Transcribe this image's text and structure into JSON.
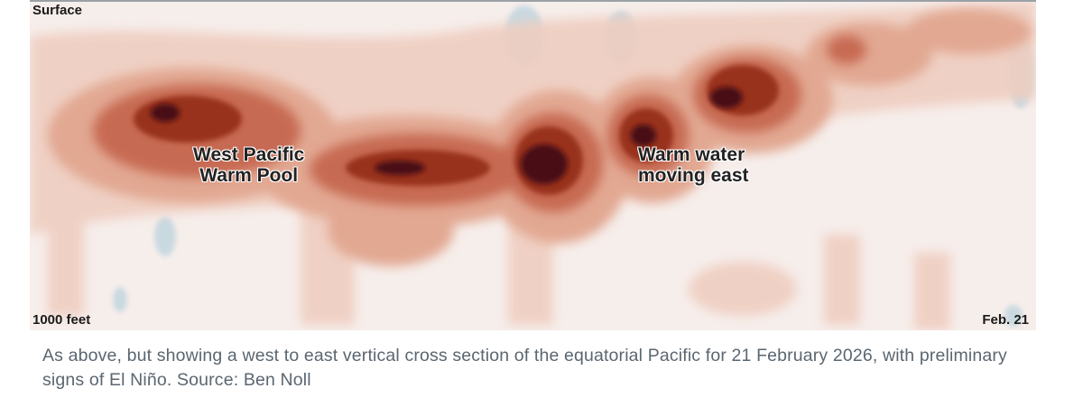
{
  "figure": {
    "top_left_label": "Surface",
    "bottom_left_label": "1000 feet",
    "bottom_right_label": "Feb. 21",
    "callouts": [
      {
        "line1": "West Pacific",
        "line2": "Warm Pool"
      },
      {
        "line1": "Warm water",
        "line2": "moving east"
      }
    ],
    "colors": {
      "warm_light": "#f3d9d0",
      "warm_mid": "#dd9b85",
      "warm_strong": "#b8523c",
      "warm_core": "#4a0e12",
      "cool": "#c9d9e0",
      "neutral": "#f6eeeb"
    }
  },
  "caption": "As above, but showing a west to east vertical cross section of the equatorial Pacific for 21 February 2026, with preliminary signs of El Niño. Source: Ben Noll"
}
